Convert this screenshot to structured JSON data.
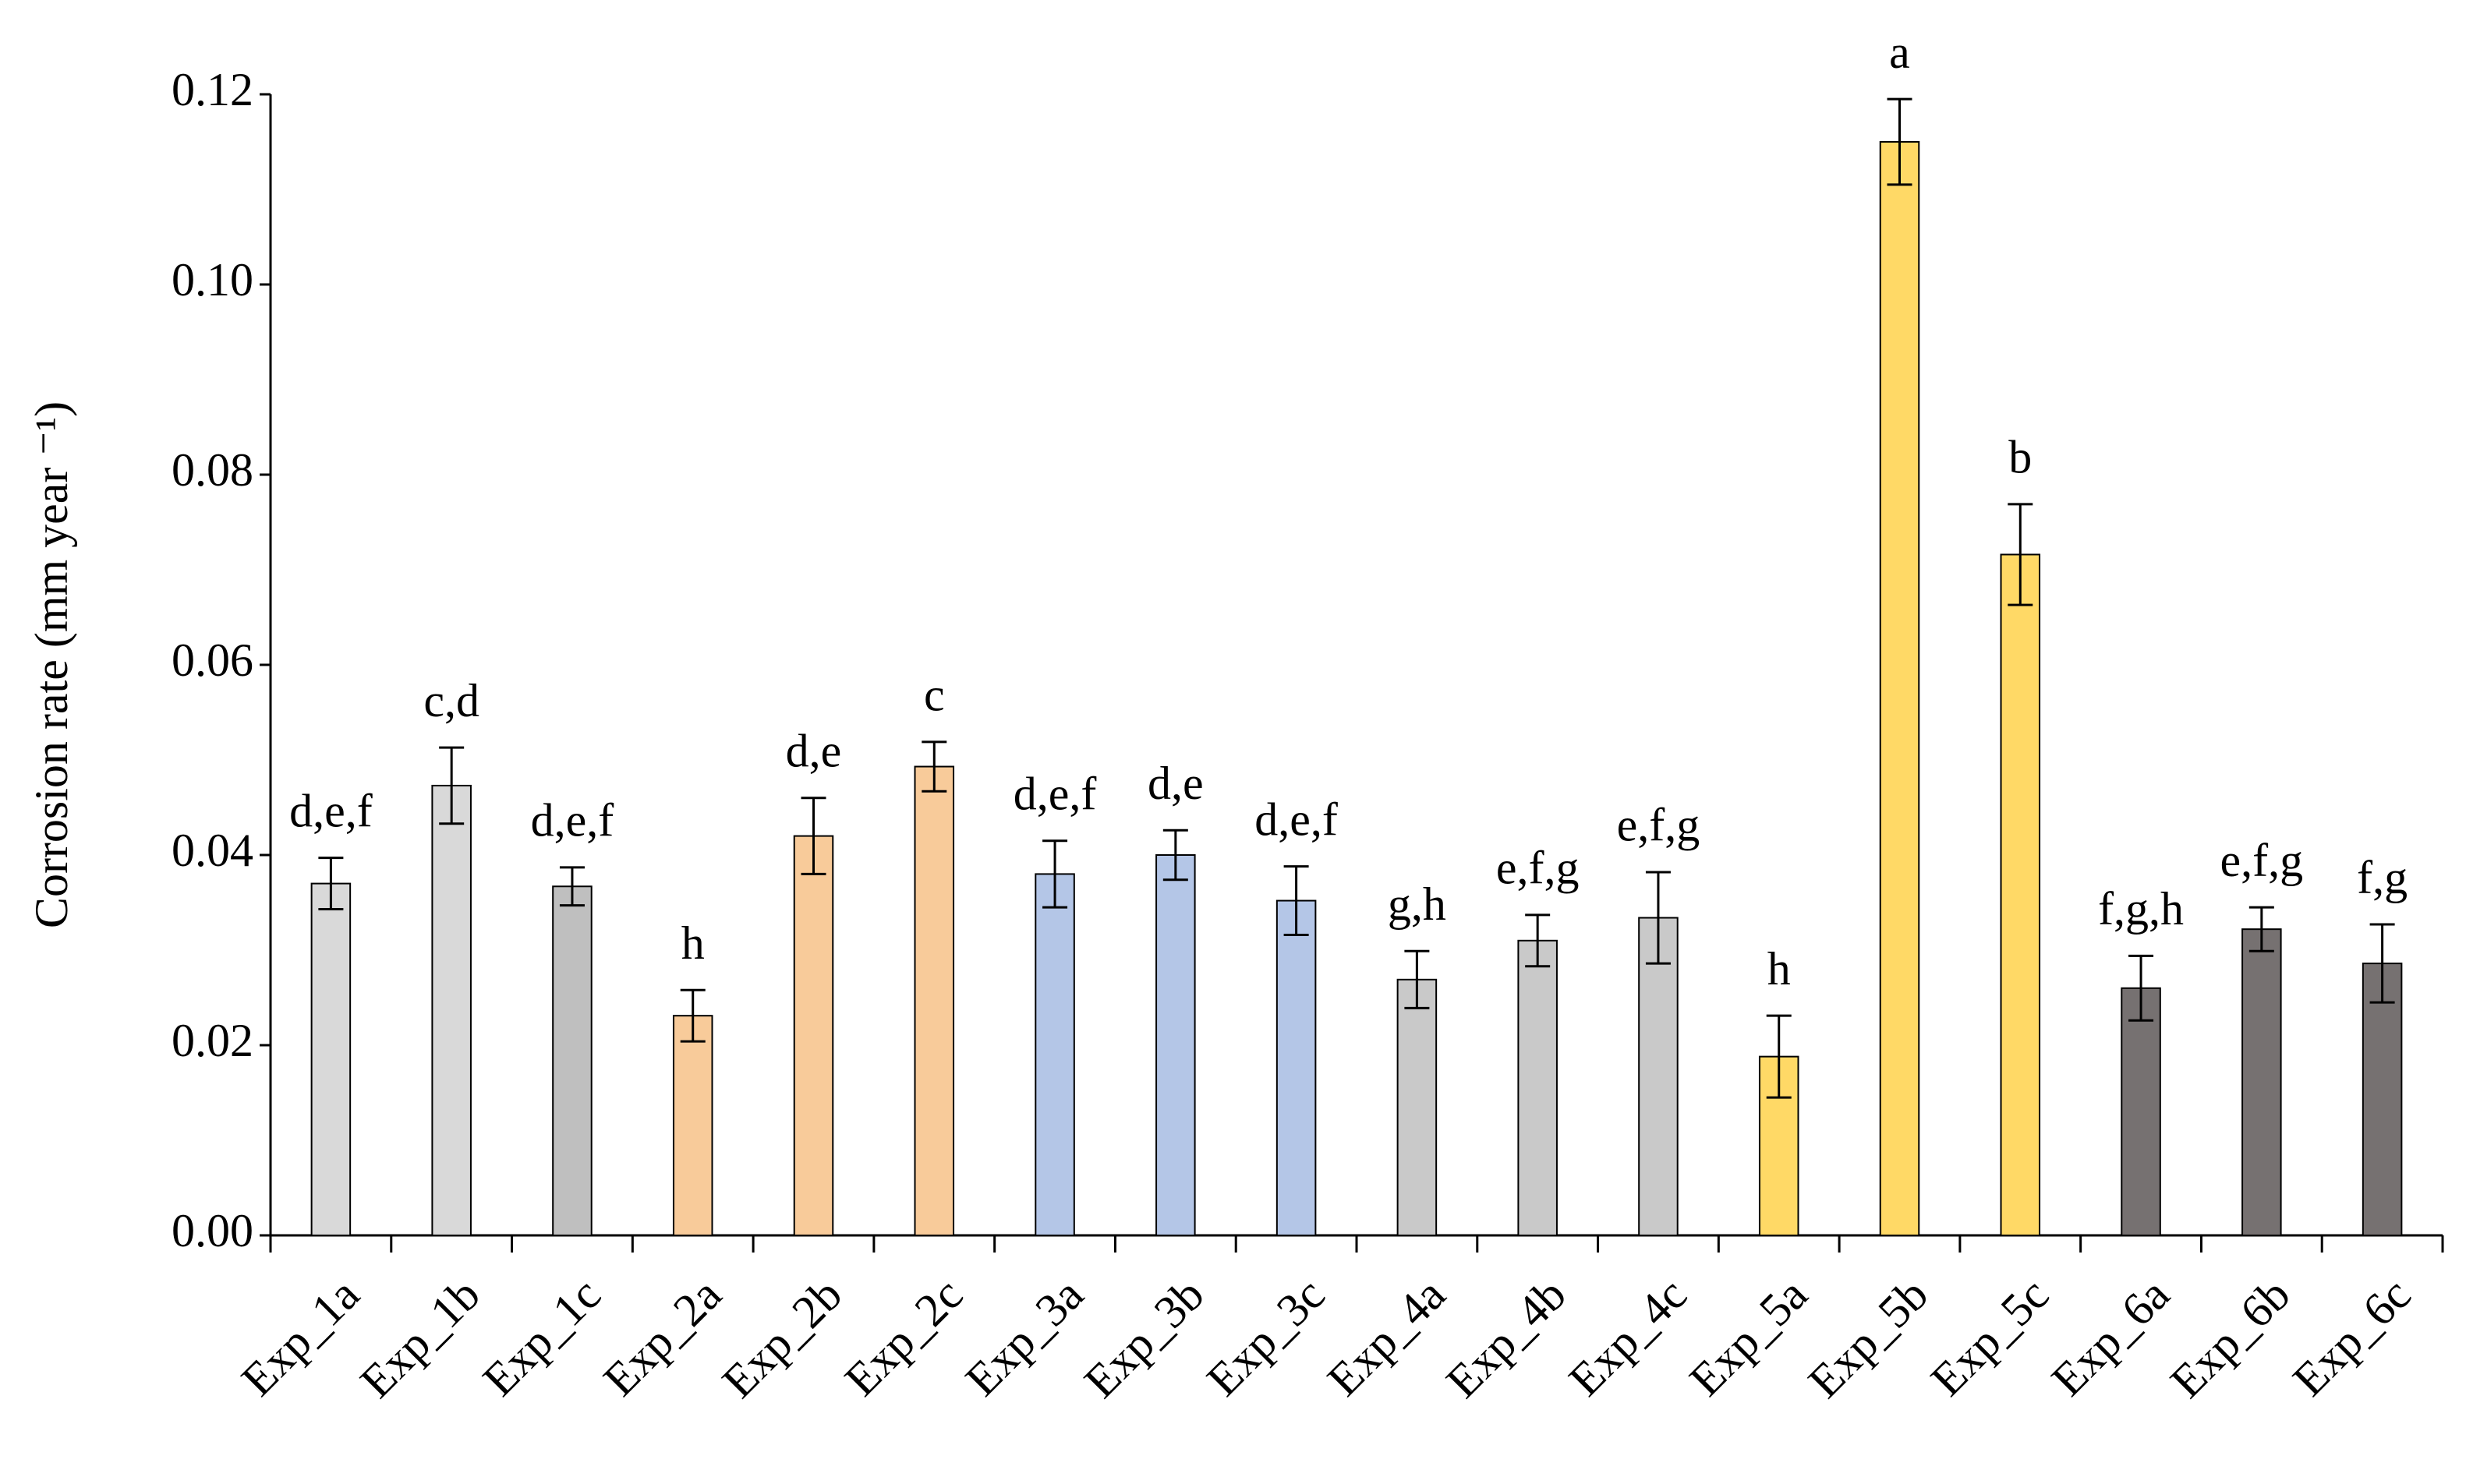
{
  "chart_data": {
    "type": "bar",
    "y_label": "Corrosion rate (mm year ⁻¹)",
    "categories": [
      "Exp_1a",
      "Exp_1b",
      "Exp_1c",
      "Exp_2a",
      "Exp_2b",
      "Exp_2c",
      "Exp_3a",
      "Exp_3b",
      "Exp_3c",
      "Exp_4a",
      "Exp_4b",
      "Exp_4c",
      "Exp_5a",
      "Exp_5b",
      "Exp_5c",
      "Exp_6a",
      "Exp_6b",
      "Exp_6c"
    ],
    "values": [
      0.037,
      0.0473,
      0.0367,
      0.0231,
      0.042,
      0.0493,
      0.038,
      0.04,
      0.0352,
      0.0269,
      0.031,
      0.0334,
      0.0188,
      0.115,
      0.0716,
      0.026,
      0.0322,
      0.0286
    ],
    "errors": [
      0.0027,
      0.004,
      0.002,
      0.0027,
      0.004,
      0.0026,
      0.0035,
      0.0026,
      0.0036,
      0.003,
      0.0027,
      0.0048,
      0.0043,
      0.0045,
      0.0053,
      0.0034,
      0.0023,
      0.0041
    ],
    "annotations": [
      "d,e,f",
      "c,d",
      "d,e,f",
      "h",
      "d,e",
      "c",
      "d,e,f",
      "d,e",
      "d,e,f",
      "g,h",
      "e,f,g",
      "e,f,g",
      "h",
      "a",
      "b",
      "f,g,h",
      "e,f,g",
      "f,g"
    ],
    "colors": [
      "#d9d9d9",
      "#d9d9d9",
      "#bfbfbf",
      "#f8cb9a",
      "#f8cb9a",
      "#f8cb9a",
      "#b4c6e7",
      "#b4c6e7",
      "#b4c6e7",
      "#c9c9c9",
      "#c9c9c9",
      "#c9c9c9",
      "#ffd966",
      "#ffd966",
      "#ffd966",
      "#767171",
      "#767171",
      "#767171"
    ],
    "ylim": [
      0,
      0.12
    ],
    "yticks": [
      {
        "value": 0,
        "label": "0.00"
      },
      0.02,
      0.04,
      0.06,
      0.08,
      {
        "value": 0.1,
        "label": "0.10"
      },
      0.12
    ],
    "grid": false
  }
}
